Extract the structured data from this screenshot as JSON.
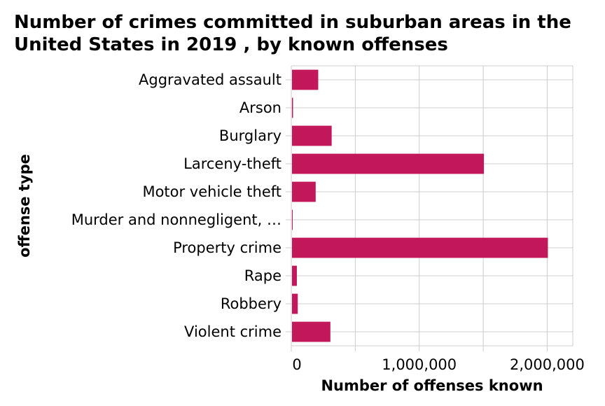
{
  "chart_data": {
    "type": "bar",
    "orientation": "horizontal",
    "title": "Number of crimes committed in suburban areas in the United States in 2019 , by known offenses",
    "xlabel": "Number of offenses known",
    "ylabel": "offense type",
    "categories": [
      "Aggravated assault",
      "Arson",
      "Burglary",
      "Larceny-theft",
      "Motor vehicle theft",
      "Murder and nonnegligent, …",
      "Property crime",
      "Rape",
      "Robbery",
      "Violent crime"
    ],
    "values": [
      205000,
      8000,
      310000,
      1500000,
      185000,
      3000,
      2000000,
      38000,
      45000,
      300000
    ],
    "xlim": [
      0,
      2200000
    ],
    "xticks": [
      0,
      1000000,
      2000000
    ],
    "xtick_labels": [
      "0",
      "1,000,000",
      "2,000,000"
    ],
    "grid": true,
    "bar_color": "#c2185b"
  }
}
